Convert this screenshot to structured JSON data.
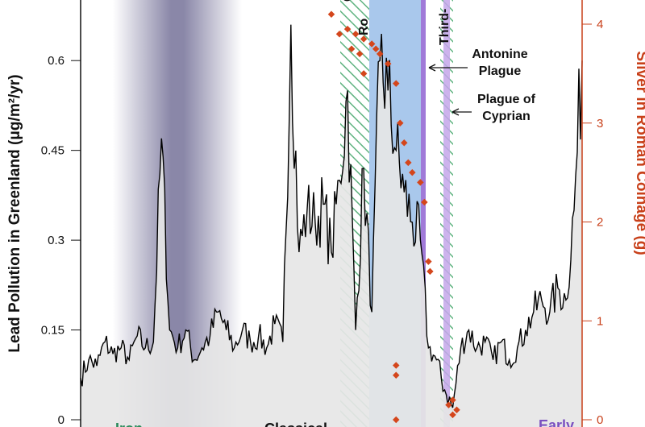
{
  "chart_data": {
    "type": "line",
    "ylabel": "Lead Pollution in Greenland (μg/m²/yr)",
    "ylabel_right": "Silver in Roman Coinage (g)",
    "ylim": [
      0,
      0.66
    ],
    "yticks": [
      "0",
      "0.15",
      "0.3",
      "0.45",
      "0.6"
    ],
    "ylim_right": [
      0,
      4.2
    ],
    "yticks_right": [
      "0",
      "1",
      "2",
      "3",
      "4"
    ],
    "grid": false,
    "colors": {
      "lead": "#000000",
      "silver": "#d4461c",
      "fill": "#e6e6e6",
      "blue_band": "#a9c8ec",
      "purple": "#a07ad8",
      "hatch": "#5fb380",
      "gray_band": "#8a87a8"
    },
    "series": [
      {
        "name": "Lead Pollution in Greenland",
        "values": [
          0.07,
          0.1,
          0.09,
          0.13,
          0.11,
          0.12,
          0.1,
          0.14,
          0.12,
          0.13,
          0.47,
          0.15,
          0.12,
          0.15,
          0.1,
          0.12,
          0.14,
          0.18,
          0.15,
          0.12,
          0.15,
          0.13,
          0.14,
          0.12,
          0.16,
          0.13,
          0.66,
          0.28,
          0.35,
          0.33,
          0.36,
          0.28,
          0.4,
          0.55,
          0.15,
          0.42,
          0.18,
          0.6,
          0.55,
          0.45,
          0.38,
          0.33,
          0.3,
          0.12,
          0.1,
          0.05,
          0.02,
          0.12,
          0.15,
          0.12,
          0.13,
          0.1,
          0.13,
          0.1,
          0.12,
          0.15,
          0.18,
          0.2,
          0.18,
          0.22,
          0.2,
          0.35,
          0.6
        ]
      },
      {
        "name": "Silver in Roman Coinage",
        "axis": "right",
        "points": [
          [
            31,
            4.1
          ],
          [
            32,
            3.9
          ],
          [
            33,
            3.95
          ],
          [
            34,
            3.9
          ],
          [
            35,
            3.85
          ],
          [
            33.5,
            3.75
          ],
          [
            34.5,
            3.7
          ],
          [
            36,
            3.8
          ],
          [
            36.5,
            3.75
          ],
          [
            37,
            3.7
          ],
          [
            38,
            3.6
          ],
          [
            35,
            3.5
          ],
          [
            39,
            3.4
          ],
          [
            39.5,
            3.0
          ],
          [
            40,
            2.8
          ],
          [
            40.5,
            2.6
          ],
          [
            41,
            2.5
          ],
          [
            42,
            2.4
          ],
          [
            42.5,
            2.2
          ],
          [
            43,
            1.6
          ],
          [
            43.2,
            1.5
          ],
          [
            39,
            0.55
          ],
          [
            39,
            0.45
          ],
          [
            39,
            0
          ],
          [
            45.5,
            0.15
          ],
          [
            46,
            0.2
          ],
          [
            46.5,
            0.1
          ],
          [
            46,
            0.05
          ]
        ]
      }
    ],
    "annotations": {
      "antonine": "Antonine\nPlague",
      "cyprian": "Plague of\nCyprian",
      "third": "Third-",
      "roman": "Ro",
      "c": "C",
      "iron": "Iron",
      "classical": "Classical",
      "early": "Early"
    }
  }
}
